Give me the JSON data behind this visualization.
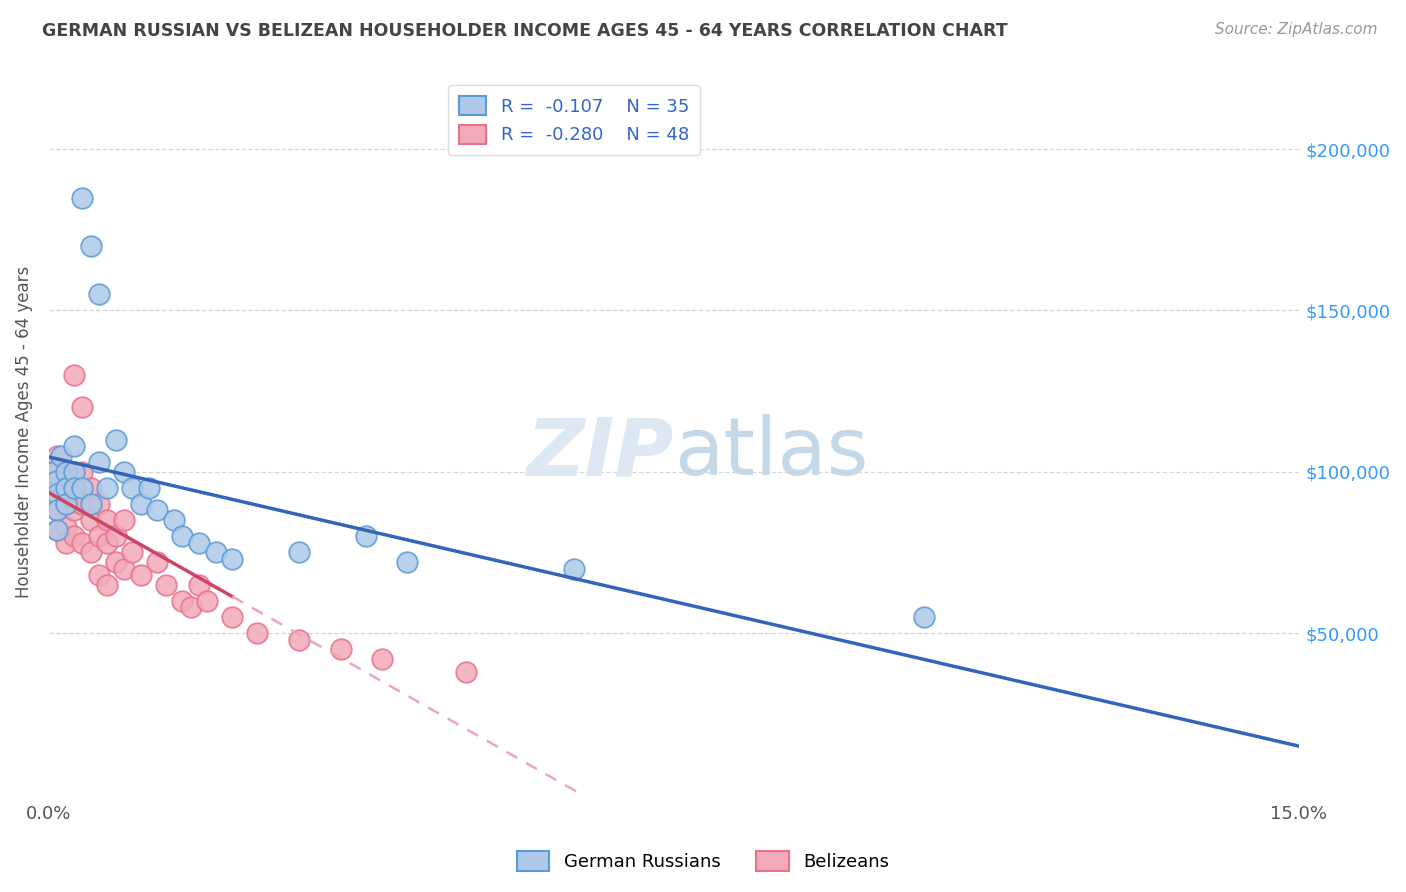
{
  "title": "GERMAN RUSSIAN VS BELIZEAN HOUSEHOLDER INCOME AGES 45 - 64 YEARS CORRELATION CHART",
  "source": "Source: ZipAtlas.com",
  "ylabel": "Householder Income Ages 45 - 64 years",
  "ytick_labels": [
    "$50,000",
    "$100,000",
    "$150,000",
    "$200,000"
  ],
  "ytick_values": [
    50000,
    100000,
    150000,
    200000
  ],
  "ylim": [
    0,
    225000
  ],
  "xlim": [
    0.0,
    0.15
  ],
  "german_russian_x": [
    0.0005,
    0.0008,
    0.001,
    0.001,
    0.001,
    0.0015,
    0.002,
    0.002,
    0.002,
    0.003,
    0.003,
    0.003,
    0.004,
    0.004,
    0.005,
    0.005,
    0.006,
    0.006,
    0.007,
    0.008,
    0.009,
    0.01,
    0.011,
    0.012,
    0.013,
    0.015,
    0.016,
    0.018,
    0.02,
    0.022,
    0.03,
    0.038,
    0.043,
    0.063,
    0.105
  ],
  "german_russian_y": [
    100000,
    97000,
    93000,
    88000,
    82000,
    105000,
    100000,
    95000,
    90000,
    108000,
    100000,
    95000,
    185000,
    95000,
    170000,
    90000,
    155000,
    103000,
    95000,
    110000,
    100000,
    95000,
    90000,
    95000,
    88000,
    85000,
    80000,
    78000,
    75000,
    73000,
    75000,
    80000,
    72000,
    70000,
    55000
  ],
  "belizean_x": [
    0.0003,
    0.0005,
    0.001,
    0.001,
    0.001,
    0.001,
    0.001,
    0.002,
    0.002,
    0.002,
    0.002,
    0.002,
    0.003,
    0.003,
    0.003,
    0.003,
    0.003,
    0.004,
    0.004,
    0.004,
    0.004,
    0.005,
    0.005,
    0.005,
    0.006,
    0.006,
    0.006,
    0.007,
    0.007,
    0.007,
    0.008,
    0.008,
    0.009,
    0.009,
    0.01,
    0.011,
    0.013,
    0.014,
    0.016,
    0.017,
    0.018,
    0.019,
    0.022,
    0.025,
    0.03,
    0.035,
    0.04,
    0.05
  ],
  "belizean_y": [
    100000,
    97000,
    105000,
    100000,
    95000,
    88000,
    82000,
    100000,
    95000,
    90000,
    83000,
    78000,
    130000,
    100000,
    95000,
    88000,
    80000,
    120000,
    100000,
    90000,
    78000,
    95000,
    85000,
    75000,
    90000,
    80000,
    68000,
    85000,
    78000,
    65000,
    80000,
    72000,
    85000,
    70000,
    75000,
    68000,
    72000,
    65000,
    60000,
    58000,
    65000,
    60000,
    55000,
    50000,
    48000,
    45000,
    42000,
    38000
  ],
  "blue_color": "#5b9bd5",
  "pink_color": "#e8728a",
  "blue_fill": "#aec9e8",
  "pink_fill": "#f2aab8",
  "blue_line_color": "#3366bb",
  "pink_line_color": "#cc4466",
  "pink_dashed_color": "#e8a8b8",
  "background_color": "#ffffff",
  "grid_color": "#cccccc",
  "title_color": "#444444",
  "watermark_color": "#dde8f2",
  "right_tick_color": "#3399ff",
  "source_color": "#999999",
  "legend_text_color": "#3366cc"
}
